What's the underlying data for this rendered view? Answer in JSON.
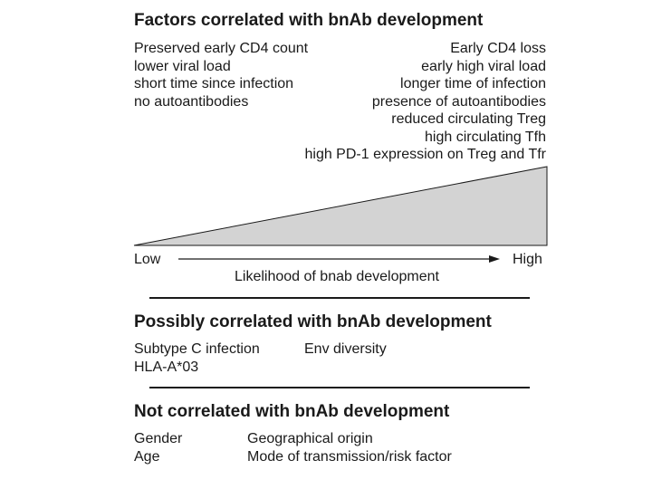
{
  "section1": {
    "title": "Factors correlated with bnAb development",
    "left_items": [
      "Preserved early CD4 count",
      "lower viral load",
      "short time since infection",
      "no autoantibodies"
    ],
    "right_items": [
      "Early CD4 loss",
      "early high viral load",
      "longer time of infection",
      "presence of autoantibodies",
      "reduced circulating Treg",
      "high circulating Tfh",
      "high PD-1 expression on Treg and Tfr"
    ],
    "axis": {
      "low_label": "Low",
      "high_label": "High",
      "caption": "Likelihood of bnab development"
    },
    "wedge_color": "#d3d3d3"
  },
  "section2": {
    "title": "Possibly correlated with bnAb development",
    "col1": [
      "Subtype C infection",
      "HLA-A*03"
    ],
    "col2": [
      "Env diversity"
    ]
  },
  "section3": {
    "title": "Not correlated with bnAb development",
    "col1": [
      "Gender",
      "Age"
    ],
    "col2": [
      "Geographical origin",
      "Mode of transmission/risk factor"
    ]
  }
}
